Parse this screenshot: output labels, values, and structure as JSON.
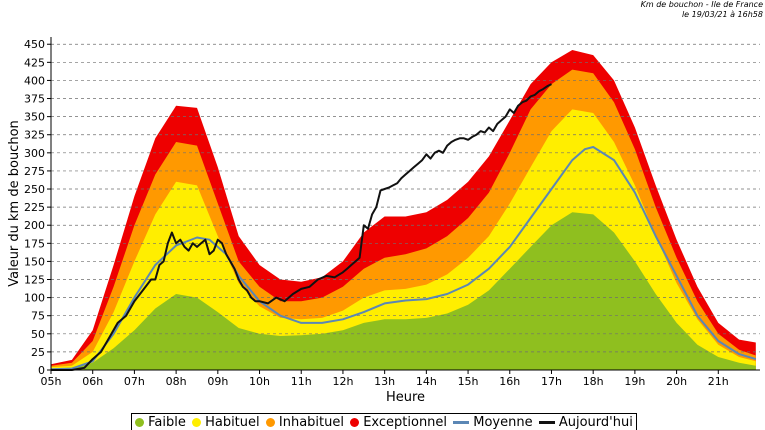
{
  "stamp": {
    "line1": "Km de bouchon - Ile de France",
    "line2": "le 19/03/21 à 16h58"
  },
  "chart_data": {
    "type": "area",
    "title": "",
    "xlabel": "Heure",
    "ylabel": "Valeur du  km de bouchon",
    "xlim": [
      5.0,
      22.0
    ],
    "ylim": [
      0,
      460
    ],
    "grid": true,
    "x_ticks": [
      "05h",
      "06h",
      "07h",
      "08h",
      "09h",
      "10h",
      "11h",
      "12h",
      "13h",
      "14h",
      "15h",
      "16h",
      "17h",
      "18h",
      "19h",
      "20h",
      "21h"
    ],
    "y_ticks": [
      0,
      25,
      50,
      75,
      100,
      125,
      150,
      175,
      200,
      225,
      250,
      275,
      300,
      325,
      350,
      375,
      400,
      425,
      450
    ],
    "legend_placement": "bottom",
    "colors": {
      "Faible": "#8fbf1f",
      "Habituel": "#ffee00",
      "Inhabituel": "#ff9900",
      "Exceptionnel": "#ee0000",
      "Moyenne": "#5b87b5",
      "Aujourd'hui": "#111111"
    },
    "band_x": [
      5.0,
      5.5,
      6.0,
      6.5,
      7.0,
      7.5,
      8.0,
      8.5,
      9.0,
      9.5,
      10.0,
      10.5,
      11.0,
      11.5,
      12.0,
      12.5,
      13.0,
      13.5,
      14.0,
      14.5,
      15.0,
      15.5,
      16.0,
      16.5,
      17.0,
      17.5,
      18.0,
      18.5,
      19.0,
      19.5,
      20.0,
      20.5,
      21.0,
      21.5,
      21.9
    ],
    "series": [
      {
        "name": "Faible",
        "kind": "band",
        "values": [
          2,
          3,
          10,
          30,
          55,
          85,
          105,
          100,
          80,
          58,
          50,
          47,
          48,
          50,
          55,
          65,
          70,
          70,
          72,
          78,
          90,
          110,
          140,
          170,
          200,
          218,
          215,
          190,
          150,
          105,
          65,
          35,
          18,
          10,
          6
        ]
      },
      {
        "name": "Habituel",
        "kind": "band",
        "values": [
          4,
          6,
          25,
          80,
          150,
          215,
          260,
          255,
          185,
          120,
          88,
          72,
          70,
          72,
          82,
          100,
          110,
          112,
          118,
          132,
          155,
          185,
          230,
          280,
          330,
          360,
          355,
          315,
          255,
          185,
          120,
          70,
          35,
          18,
          12
        ]
      },
      {
        "name": "Inhabituel",
        "kind": "band",
        "values": [
          6,
          10,
          40,
          115,
          200,
          270,
          315,
          310,
          230,
          150,
          115,
          95,
          95,
          100,
          115,
          140,
          155,
          160,
          168,
          185,
          210,
          245,
          300,
          360,
          395,
          415,
          410,
          370,
          305,
          225,
          155,
          95,
          50,
          28,
          20
        ]
      },
      {
        "name": "Exceptionnel",
        "kind": "band",
        "values": [
          8,
          14,
          55,
          145,
          240,
          320,
          365,
          362,
          280,
          185,
          145,
          125,
          122,
          128,
          150,
          190,
          212,
          212,
          218,
          235,
          260,
          295,
          345,
          395,
          425,
          442,
          435,
          400,
          335,
          255,
          180,
          115,
          65,
          42,
          38
        ]
      },
      {
        "name": "Moyenne",
        "kind": "line",
        "x": [
          5.0,
          5.5,
          6.0,
          6.5,
          7.0,
          7.5,
          8.0,
          8.5,
          8.8,
          9.2,
          9.5,
          10.0,
          10.5,
          11.0,
          11.5,
          12.0,
          12.5,
          13.0,
          13.5,
          14.0,
          14.5,
          15.0,
          15.5,
          16.0,
          16.5,
          17.0,
          17.5,
          17.8,
          18.0,
          18.5,
          19.0,
          19.5,
          20.0,
          20.5,
          21.0,
          21.5,
          21.9
        ],
        "values": [
          1,
          2,
          12,
          50,
          100,
          145,
          172,
          183,
          180,
          160,
          130,
          95,
          75,
          65,
          65,
          70,
          80,
          92,
          96,
          98,
          105,
          118,
          140,
          170,
          210,
          250,
          290,
          305,
          308,
          290,
          245,
          185,
          130,
          75,
          40,
          22,
          15
        ]
      },
      {
        "name": "Aujourd'hui",
        "kind": "line",
        "x": [
          5.0,
          5.5,
          5.8,
          6.0,
          6.2,
          6.4,
          6.6,
          6.8,
          7.0,
          7.2,
          7.4,
          7.5,
          7.6,
          7.7,
          7.8,
          7.9,
          8.0,
          8.1,
          8.2,
          8.3,
          8.4,
          8.5,
          8.6,
          8.7,
          8.8,
          8.9,
          9.0,
          9.1,
          9.2,
          9.3,
          9.4,
          9.5,
          9.6,
          9.7,
          9.8,
          9.9,
          10.0,
          10.2,
          10.4,
          10.6,
          10.8,
          11.0,
          11.2,
          11.4,
          11.6,
          11.8,
          12.0,
          12.1,
          12.2,
          12.3,
          12.4,
          12.5,
          12.6,
          12.7,
          12.8,
          12.9,
          13.0,
          13.1,
          13.2,
          13.3,
          13.4,
          13.5,
          13.6,
          13.7,
          13.8,
          13.9,
          14.0,
          14.1,
          14.2,
          14.3,
          14.4,
          14.5,
          14.6,
          14.7,
          14.8,
          14.9,
          15.0,
          15.1,
          15.2,
          15.3,
          15.4,
          15.5,
          15.6,
          15.7,
          15.8,
          15.9,
          16.0,
          16.1,
          16.2,
          16.3,
          16.4,
          16.5,
          16.6,
          16.7,
          16.8,
          16.9,
          17.0
        ],
        "values": [
          0,
          0,
          3,
          15,
          25,
          45,
          65,
          75,
          95,
          110,
          125,
          125,
          145,
          150,
          175,
          190,
          175,
          180,
          170,
          165,
          175,
          170,
          175,
          180,
          160,
          165,
          180,
          175,
          160,
          150,
          140,
          125,
          115,
          110,
          100,
          95,
          95,
          92,
          100,
          95,
          105,
          112,
          115,
          125,
          130,
          128,
          135,
          140,
          145,
          150,
          155,
          200,
          195,
          215,
          225,
          248,
          250,
          252,
          255,
          258,
          265,
          270,
          275,
          280,
          285,
          290,
          298,
          292,
          300,
          303,
          300,
          310,
          315,
          318,
          320,
          320,
          318,
          322,
          325,
          330,
          328,
          335,
          330,
          340,
          345,
          350,
          360,
          355,
          365,
          370,
          372,
          378,
          380,
          385,
          388,
          392,
          395
        ]
      }
    ]
  },
  "legend": {
    "faible": "Faible",
    "habituel": "Habituel",
    "inhabituel": "Inhabituel",
    "exceptionnel": "Exceptionnel",
    "moyenne": "Moyenne",
    "aujourdhui": "Aujourd'hui"
  }
}
